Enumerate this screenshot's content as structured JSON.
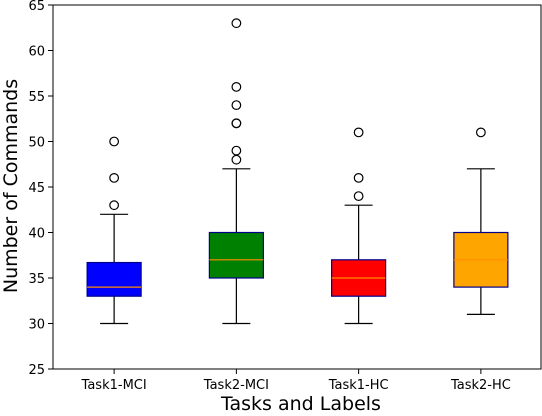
{
  "chart_data": {
    "type": "boxplot",
    "xlabel": "Tasks and Labels",
    "ylabel": "Number of Commands",
    "ylim": [
      25,
      65
    ],
    "yticks": [
      25,
      30,
      35,
      40,
      45,
      50,
      55,
      60,
      65
    ],
    "grid": false,
    "categories": [
      "Task1-MCI",
      "Task2-MCI",
      "Task1-HC",
      "Task2-HC"
    ],
    "boxes": [
      {
        "label": "Task1-MCI",
        "color": "#0000ff",
        "whisker_low": 30,
        "q1": 33,
        "median": 34,
        "q3": 36.7,
        "whisker_high": 42,
        "outliers": [
          43,
          46,
          50
        ]
      },
      {
        "label": "Task2-MCI",
        "color": "#008000",
        "whisker_low": 30,
        "q1": 35,
        "median": 37,
        "q3": 40,
        "whisker_high": 47,
        "outliers": [
          48,
          49,
          52,
          52,
          54,
          56,
          63
        ]
      },
      {
        "label": "Task1-HC",
        "color": "#ff0000",
        "whisker_low": 30,
        "q1": 33,
        "median": 35,
        "q3": 37,
        "whisker_high": 43,
        "outliers": [
          44,
          46,
          51
        ]
      },
      {
        "label": "Task2-HC",
        "color": "#ffa500",
        "whisker_low": 31,
        "q1": 34,
        "median": 37,
        "q3": 40,
        "whisker_high": 47,
        "outliers": [
          51
        ]
      }
    ],
    "box_edge_color": "#00008b",
    "median_color": "#ff8c00"
  }
}
